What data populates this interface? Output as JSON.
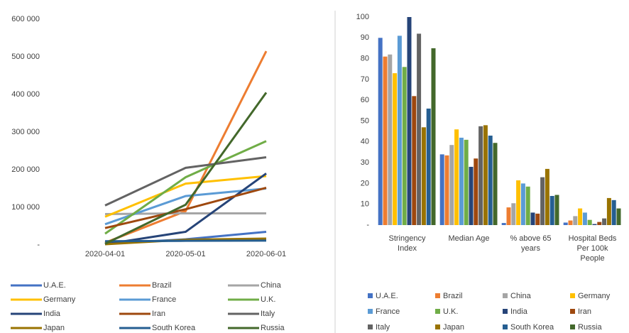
{
  "chart_data": [
    {
      "type": "line",
      "x": [
        "2020-04-01",
        "2020-05-01",
        "2020-06-01"
      ],
      "ylim": [
        0,
        600000
      ],
      "yticks": [
        {
          "value": 0,
          "label": "-"
        },
        {
          "value": 100000,
          "label": "100 000"
        },
        {
          "value": 200000,
          "label": "200 000"
        },
        {
          "value": 300000,
          "label": "300 000"
        },
        {
          "value": 400000,
          "label": "400 000"
        },
        {
          "value": 500000,
          "label": "500 000"
        },
        {
          "value": 600000,
          "label": "600 000"
        }
      ],
      "legend": "bottom",
      "series": [
        {
          "name": "U.A.E.",
          "color": "#4472c4",
          "values": [
            3000,
            15000,
            35000
          ]
        },
        {
          "name": "Brazil",
          "color": "#ed7d31",
          "values": [
            6000,
            90000,
            515000
          ]
        },
        {
          "name": "China",
          "color": "#a5a5a5",
          "values": [
            82000,
            84000,
            84000
          ]
        },
        {
          "name": "Germany",
          "color": "#ffc000",
          "values": [
            75000,
            163000,
            183000
          ]
        },
        {
          "name": "France",
          "color": "#5b9bd5",
          "values": [
            55000,
            130000,
            150000
          ]
        },
        {
          "name": "U.K.",
          "color": "#70ad47",
          "values": [
            30000,
            180000,
            276000
          ]
        },
        {
          "name": "India",
          "color": "#264478",
          "values": [
            2000,
            35000,
            190000
          ]
        },
        {
          "name": "Iran",
          "color": "#9e480e",
          "values": [
            45000,
            95000,
            152000
          ]
        },
        {
          "name": "Italy",
          "color": "#636363",
          "values": [
            105000,
            205000,
            233000
          ]
        },
        {
          "name": "Japan",
          "color": "#997300",
          "values": [
            2000,
            14000,
            17000
          ]
        },
        {
          "name": "South Korea",
          "color": "#255e91",
          "values": [
            10000,
            11000,
            11500
          ]
        },
        {
          "name": "Russia",
          "color": "#43682b",
          "values": [
            3000,
            107000,
            405000
          ]
        }
      ]
    },
    {
      "type": "bar",
      "categories": [
        "Stringency Index",
        "Median Age",
        "% above 65 years",
        "Hospital Beds Per 100k People"
      ],
      "ylim": [
        0,
        100
      ],
      "yticks": [
        {
          "value": 0,
          "label": "-"
        },
        10,
        20,
        30,
        40,
        50,
        60,
        70,
        80,
        90,
        100
      ],
      "legend": "bottom",
      "series": [
        {
          "name": "U.A.E.",
          "color": "#4472c4",
          "values": [
            90,
            34,
            1,
            1.2
          ]
        },
        {
          "name": "Brazil",
          "color": "#ed7d31",
          "values": [
            81,
            33.5,
            8.5,
            2.2
          ]
        },
        {
          "name": "China",
          "color": "#a5a5a5",
          "values": [
            82,
            38.5,
            10.5,
            4.3
          ]
        },
        {
          "name": "Germany",
          "color": "#ffc000",
          "values": [
            73,
            46,
            21.5,
            8
          ]
        },
        {
          "name": "France",
          "color": "#5b9bd5",
          "values": [
            91,
            42,
            20,
            6
          ]
        },
        {
          "name": "U.K.",
          "color": "#70ad47",
          "values": [
            76,
            41,
            18.5,
            2.5
          ]
        },
        {
          "name": "India",
          "color": "#264478",
          "values": [
            100,
            28,
            6,
            0.5
          ]
        },
        {
          "name": "Iran",
          "color": "#9e480e",
          "values": [
            62,
            32,
            5.5,
            1.5
          ]
        },
        {
          "name": "Italy",
          "color": "#636363",
          "values": [
            92,
            47.5,
            23,
            3.2
          ]
        },
        {
          "name": "Japan",
          "color": "#997300",
          "values": [
            47,
            48,
            27,
            13
          ]
        },
        {
          "name": "South Korea",
          "color": "#255e91",
          "values": [
            56,
            43,
            14,
            12
          ]
        },
        {
          "name": "Russia",
          "color": "#43682b",
          "values": [
            85,
            39.5,
            14.5,
            8
          ]
        }
      ]
    }
  ]
}
